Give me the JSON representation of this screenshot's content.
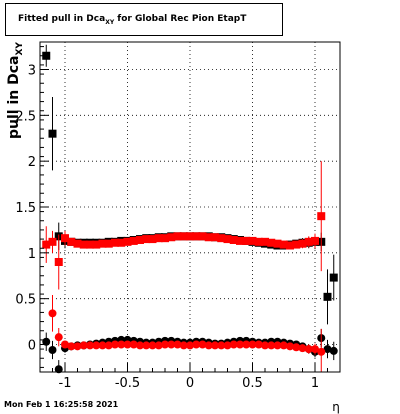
{
  "title": {
    "prefix": "Fitted pull in Dca",
    "sub": "XY",
    "suffix": " for Global Rec Pion EtapT"
  },
  "footer": {
    "timestamp": "Mon Feb  1 16:25:58 2021"
  },
  "chart_data": {
    "type": "scatter",
    "xlabel": "η",
    "ylabel": "pull in Dca",
    "ylabel_sub": "XY",
    "xlim": [
      -1.2,
      1.2
    ],
    "ylim": [
      -0.3,
      3.3
    ],
    "x_ticks": [
      "-1",
      "-0.5",
      "0",
      "0.5",
      "1"
    ],
    "y_ticks": [
      "0",
      "0.5",
      "1",
      "1.5",
      "2",
      "2.5",
      "3"
    ],
    "grid": true,
    "colors": {
      "black": "#000000",
      "red": "#ff0000"
    },
    "series": [
      {
        "marker": "square",
        "color": "#000000",
        "points": [
          [
            -1.15,
            3.15,
            0.12
          ],
          [
            -1.1,
            2.3,
            0.4
          ],
          [
            -1.05,
            1.18,
            0.15
          ],
          [
            -1.0,
            1.13,
            0.08
          ],
          [
            -0.95,
            1.12,
            0.04
          ],
          [
            -0.9,
            1.11,
            0.03
          ],
          [
            -0.85,
            1.11,
            0.03
          ],
          [
            -0.8,
            1.11,
            0.03
          ],
          [
            -0.75,
            1.11,
            0.03
          ],
          [
            -0.7,
            1.11,
            0.03
          ],
          [
            -0.65,
            1.12,
            0.03
          ],
          [
            -0.6,
            1.12,
            0.03
          ],
          [
            -0.55,
            1.13,
            0.03
          ],
          [
            -0.5,
            1.13,
            0.03
          ],
          [
            -0.45,
            1.14,
            0.03
          ],
          [
            -0.4,
            1.15,
            0.03
          ],
          [
            -0.35,
            1.16,
            0.03
          ],
          [
            -0.3,
            1.16,
            0.03
          ],
          [
            -0.25,
            1.17,
            0.03
          ],
          [
            -0.2,
            1.17,
            0.03
          ],
          [
            -0.15,
            1.18,
            0.03
          ],
          [
            -0.1,
            1.18,
            0.03
          ],
          [
            -0.05,
            1.18,
            0.03
          ],
          [
            0.0,
            1.18,
            0.03
          ],
          [
            0.05,
            1.18,
            0.03
          ],
          [
            0.1,
            1.18,
            0.03
          ],
          [
            0.15,
            1.18,
            0.03
          ],
          [
            0.2,
            1.17,
            0.03
          ],
          [
            0.25,
            1.17,
            0.03
          ],
          [
            0.3,
            1.16,
            0.03
          ],
          [
            0.35,
            1.15,
            0.03
          ],
          [
            0.4,
            1.14,
            0.03
          ],
          [
            0.45,
            1.13,
            0.03
          ],
          [
            0.5,
            1.12,
            0.03
          ],
          [
            0.55,
            1.11,
            0.03
          ],
          [
            0.6,
            1.1,
            0.03
          ],
          [
            0.65,
            1.09,
            0.03
          ],
          [
            0.7,
            1.08,
            0.03
          ],
          [
            0.75,
            1.08,
            0.03
          ],
          [
            0.8,
            1.09,
            0.03
          ],
          [
            0.85,
            1.1,
            0.04
          ],
          [
            0.9,
            1.11,
            0.05
          ],
          [
            0.95,
            1.11,
            0.06
          ],
          [
            1.0,
            1.12,
            0.08
          ],
          [
            1.05,
            1.12,
            0.1
          ],
          [
            1.1,
            0.52,
            0.3
          ],
          [
            1.15,
            0.73,
            0.25
          ]
        ]
      },
      {
        "marker": "square",
        "color": "#ff0000",
        "points": [
          [
            -1.15,
            1.09,
            0.2
          ],
          [
            -1.1,
            1.12,
            0.12
          ],
          [
            -1.05,
            0.9,
            0.3
          ],
          [
            -1.0,
            1.16,
            0.08
          ],
          [
            -0.95,
            1.12,
            0.04
          ],
          [
            -0.9,
            1.1,
            0.03
          ],
          [
            -0.85,
            1.09,
            0.03
          ],
          [
            -0.8,
            1.09,
            0.03
          ],
          [
            -0.75,
            1.09,
            0.03
          ],
          [
            -0.7,
            1.1,
            0.03
          ],
          [
            -0.65,
            1.1,
            0.03
          ],
          [
            -0.6,
            1.11,
            0.03
          ],
          [
            -0.55,
            1.11,
            0.03
          ],
          [
            -0.5,
            1.12,
            0.03
          ],
          [
            -0.45,
            1.13,
            0.03
          ],
          [
            -0.4,
            1.14,
            0.03
          ],
          [
            -0.35,
            1.15,
            0.03
          ],
          [
            -0.3,
            1.15,
            0.03
          ],
          [
            -0.25,
            1.16,
            0.03
          ],
          [
            -0.2,
            1.16,
            0.03
          ],
          [
            -0.15,
            1.17,
            0.03
          ],
          [
            -0.1,
            1.18,
            0.03
          ],
          [
            -0.05,
            1.18,
            0.03
          ],
          [
            0.0,
            1.18,
            0.03
          ],
          [
            0.05,
            1.18,
            0.03
          ],
          [
            0.1,
            1.18,
            0.03
          ],
          [
            0.15,
            1.17,
            0.03
          ],
          [
            0.2,
            1.17,
            0.03
          ],
          [
            0.25,
            1.16,
            0.03
          ],
          [
            0.3,
            1.15,
            0.03
          ],
          [
            0.35,
            1.14,
            0.03
          ],
          [
            0.4,
            1.13,
            0.03
          ],
          [
            0.45,
            1.13,
            0.03
          ],
          [
            0.5,
            1.13,
            0.03
          ],
          [
            0.55,
            1.12,
            0.03
          ],
          [
            0.6,
            1.12,
            0.03
          ],
          [
            0.65,
            1.11,
            0.03
          ],
          [
            0.7,
            1.1,
            0.03
          ],
          [
            0.75,
            1.09,
            0.03
          ],
          [
            0.8,
            1.08,
            0.03
          ],
          [
            0.85,
            1.09,
            0.04
          ],
          [
            0.9,
            1.1,
            0.05
          ],
          [
            0.95,
            1.12,
            0.06
          ],
          [
            1.0,
            1.13,
            0.08
          ],
          [
            1.05,
            1.4,
            0.6
          ]
        ]
      },
      {
        "marker": "circle",
        "color": "#000000",
        "points": [
          [
            -1.15,
            0.03,
            0.1
          ],
          [
            -1.1,
            -0.06,
            0.1
          ],
          [
            -1.05,
            -0.27,
            0.1
          ],
          [
            -1.0,
            -0.04,
            0.05
          ],
          [
            -0.95,
            -0.02,
            0.03
          ],
          [
            -0.9,
            -0.01,
            0.02
          ],
          [
            -0.85,
            -0.01,
            0.02
          ],
          [
            -0.8,
            0.0,
            0.02
          ],
          [
            -0.75,
            0.01,
            0.02
          ],
          [
            -0.7,
            0.02,
            0.02
          ],
          [
            -0.65,
            0.03,
            0.02
          ],
          [
            -0.6,
            0.04,
            0.02
          ],
          [
            -0.55,
            0.05,
            0.02
          ],
          [
            -0.5,
            0.05,
            0.02
          ],
          [
            -0.45,
            0.04,
            0.02
          ],
          [
            -0.4,
            0.03,
            0.02
          ],
          [
            -0.35,
            0.02,
            0.02
          ],
          [
            -0.3,
            0.02,
            0.02
          ],
          [
            -0.25,
            0.03,
            0.02
          ],
          [
            -0.2,
            0.04,
            0.02
          ],
          [
            -0.15,
            0.04,
            0.02
          ],
          [
            -0.1,
            0.03,
            0.02
          ],
          [
            -0.05,
            0.02,
            0.02
          ],
          [
            0.0,
            0.02,
            0.02
          ],
          [
            0.05,
            0.03,
            0.02
          ],
          [
            0.1,
            0.03,
            0.02
          ],
          [
            0.15,
            0.02,
            0.02
          ],
          [
            0.2,
            0.01,
            0.02
          ],
          [
            0.25,
            0.01,
            0.02
          ],
          [
            0.3,
            0.02,
            0.02
          ],
          [
            0.35,
            0.03,
            0.02
          ],
          [
            0.4,
            0.04,
            0.02
          ],
          [
            0.45,
            0.04,
            0.02
          ],
          [
            0.5,
            0.03,
            0.02
          ],
          [
            0.55,
            0.02,
            0.02
          ],
          [
            0.6,
            0.02,
            0.02
          ],
          [
            0.65,
            0.03,
            0.02
          ],
          [
            0.7,
            0.03,
            0.02
          ],
          [
            0.75,
            0.02,
            0.02
          ],
          [
            0.8,
            0.01,
            0.02
          ],
          [
            0.85,
            0.0,
            0.03
          ],
          [
            0.9,
            -0.02,
            0.04
          ],
          [
            0.95,
            -0.05,
            0.05
          ],
          [
            1.0,
            -0.08,
            0.06
          ],
          [
            1.05,
            0.07,
            0.1
          ],
          [
            1.1,
            -0.05,
            0.1
          ],
          [
            1.15,
            -0.07,
            0.1
          ]
        ]
      },
      {
        "marker": "circle",
        "color": "#ff0000",
        "points": [
          [
            -1.1,
            0.34,
            0.2
          ],
          [
            -1.05,
            0.08,
            0.1
          ],
          [
            -1.0,
            0.0,
            0.04
          ],
          [
            -0.95,
            -0.02,
            0.02
          ],
          [
            -0.9,
            -0.02,
            0.02
          ],
          [
            -0.85,
            -0.01,
            0.02
          ],
          [
            -0.8,
            -0.01,
            0.02
          ],
          [
            -0.75,
            -0.01,
            0.02
          ],
          [
            -0.7,
            -0.01,
            0.02
          ],
          [
            -0.65,
            -0.01,
            0.02
          ],
          [
            -0.6,
            0.0,
            0.02
          ],
          [
            -0.55,
            0.0,
            0.02
          ],
          [
            -0.5,
            0.0,
            0.02
          ],
          [
            -0.45,
            0.0,
            0.02
          ],
          [
            -0.4,
            -0.01,
            0.02
          ],
          [
            -0.35,
            -0.01,
            0.02
          ],
          [
            -0.3,
            -0.01,
            0.02
          ],
          [
            -0.25,
            -0.01,
            0.02
          ],
          [
            -0.2,
            0.0,
            0.02
          ],
          [
            -0.15,
            0.0,
            0.02
          ],
          [
            -0.1,
            0.0,
            0.02
          ],
          [
            -0.05,
            -0.01,
            0.02
          ],
          [
            0.0,
            -0.01,
            0.02
          ],
          [
            0.05,
            0.0,
            0.02
          ],
          [
            0.1,
            0.0,
            0.02
          ],
          [
            0.15,
            -0.01,
            0.02
          ],
          [
            0.2,
            -0.01,
            0.02
          ],
          [
            0.25,
            -0.01,
            0.02
          ],
          [
            0.3,
            -0.01,
            0.02
          ],
          [
            0.35,
            0.0,
            0.02
          ],
          [
            0.4,
            0.0,
            0.02
          ],
          [
            0.45,
            0.0,
            0.02
          ],
          [
            0.5,
            0.0,
            0.02
          ],
          [
            0.55,
            0.0,
            0.02
          ],
          [
            0.6,
            -0.01,
            0.02
          ],
          [
            0.65,
            -0.01,
            0.02
          ],
          [
            0.7,
            -0.01,
            0.02
          ],
          [
            0.75,
            -0.01,
            0.02
          ],
          [
            0.8,
            -0.02,
            0.02
          ],
          [
            0.85,
            -0.03,
            0.03
          ],
          [
            0.9,
            -0.04,
            0.04
          ],
          [
            0.95,
            -0.05,
            0.05
          ],
          [
            1.0,
            -0.05,
            0.06
          ],
          [
            1.05,
            -0.08,
            0.25
          ]
        ]
      }
    ]
  }
}
